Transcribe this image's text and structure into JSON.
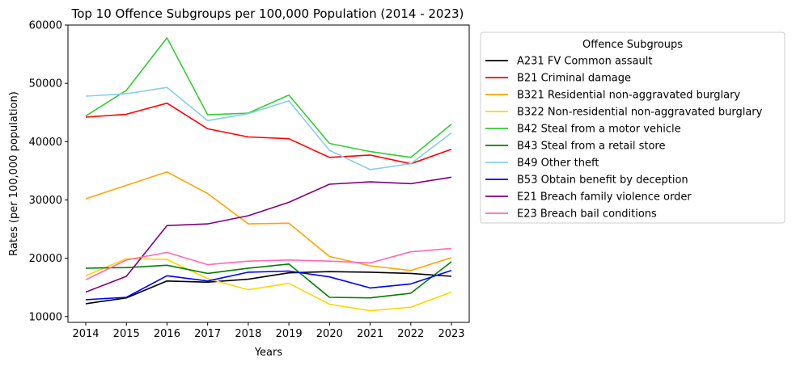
{
  "chart_data": {
    "type": "line",
    "title": "Top 10 Offence Subgroups per 100,000 Population (2014 - 2023)",
    "xlabel": "Years",
    "ylabel": "Rates (per 100,000 population)",
    "x": [
      2014,
      2015,
      2016,
      2017,
      2018,
      2019,
      2020,
      2021,
      2022,
      2023
    ],
    "x_tick_labels": [
      "2014",
      "2015",
      "2016",
      "2017",
      "2018",
      "2019",
      "2020",
      "2021",
      "2022",
      "2023"
    ],
    "ylim": [
      9000,
      60000
    ],
    "y_ticks": [
      10000,
      20000,
      30000,
      40000,
      50000,
      60000
    ],
    "y_tick_labels": [
      "10000",
      "20000",
      "30000",
      "40000",
      "50000",
      "60000"
    ],
    "grid": false,
    "legend_title": "Offence Subgroups",
    "legend_placement": "outside-right",
    "series": [
      {
        "name": "A231 FV Common assault",
        "color": "#000000",
        "values": [
          12200,
          13200,
          16100,
          15900,
          16400,
          17500,
          17700,
          17600,
          17400,
          16900
        ]
      },
      {
        "name": "B21 Criminal damage",
        "color": "#ff0000",
        "values": [
          44200,
          44700,
          46600,
          42200,
          40800,
          40500,
          37300,
          37700,
          36200,
          38700
        ]
      },
      {
        "name": "B321 Residential non-aggravated burglary",
        "color": "#ffa500",
        "values": [
          30200,
          32500,
          34800,
          31100,
          25900,
          26000,
          20300,
          18700,
          17900,
          20100
        ]
      },
      {
        "name": "B322 Non-residential non-aggravated burglary",
        "color": "#ffd700",
        "values": [
          17000,
          19900,
          19800,
          16500,
          14600,
          15700,
          12100,
          11000,
          11600,
          14200
        ]
      },
      {
        "name": "B42 Steal from a motor vehicle",
        "color": "#32cd32",
        "values": [
          44400,
          48800,
          57800,
          44600,
          44900,
          48000,
          39700,
          38300,
          37300,
          43000
        ]
      },
      {
        "name": "B43 Steal from a retail store",
        "color": "#008000",
        "values": [
          18300,
          18400,
          18800,
          17400,
          18300,
          19000,
          13300,
          13200,
          14000,
          19400
        ]
      },
      {
        "name": "B49 Other theft",
        "color": "#87ceeb",
        "values": [
          47800,
          48200,
          49300,
          43600,
          44800,
          47000,
          38500,
          35200,
          36200,
          41500
        ]
      },
      {
        "name": "B53 Obtain benefit by deception",
        "color": "#0000ff",
        "values": [
          12900,
          13300,
          17000,
          16100,
          17600,
          17800,
          16800,
          14900,
          15600,
          17900
        ]
      },
      {
        "name": "E21 Breach family violence order",
        "color": "#800080",
        "values": [
          14200,
          16900,
          25600,
          25900,
          27300,
          29600,
          32700,
          33100,
          32800,
          33900
        ]
      },
      {
        "name": "E23 Breach bail conditions",
        "color": "#ff69b4",
        "values": [
          16300,
          19700,
          21000,
          18900,
          19500,
          19700,
          19500,
          19200,
          21100,
          21700
        ]
      }
    ]
  }
}
